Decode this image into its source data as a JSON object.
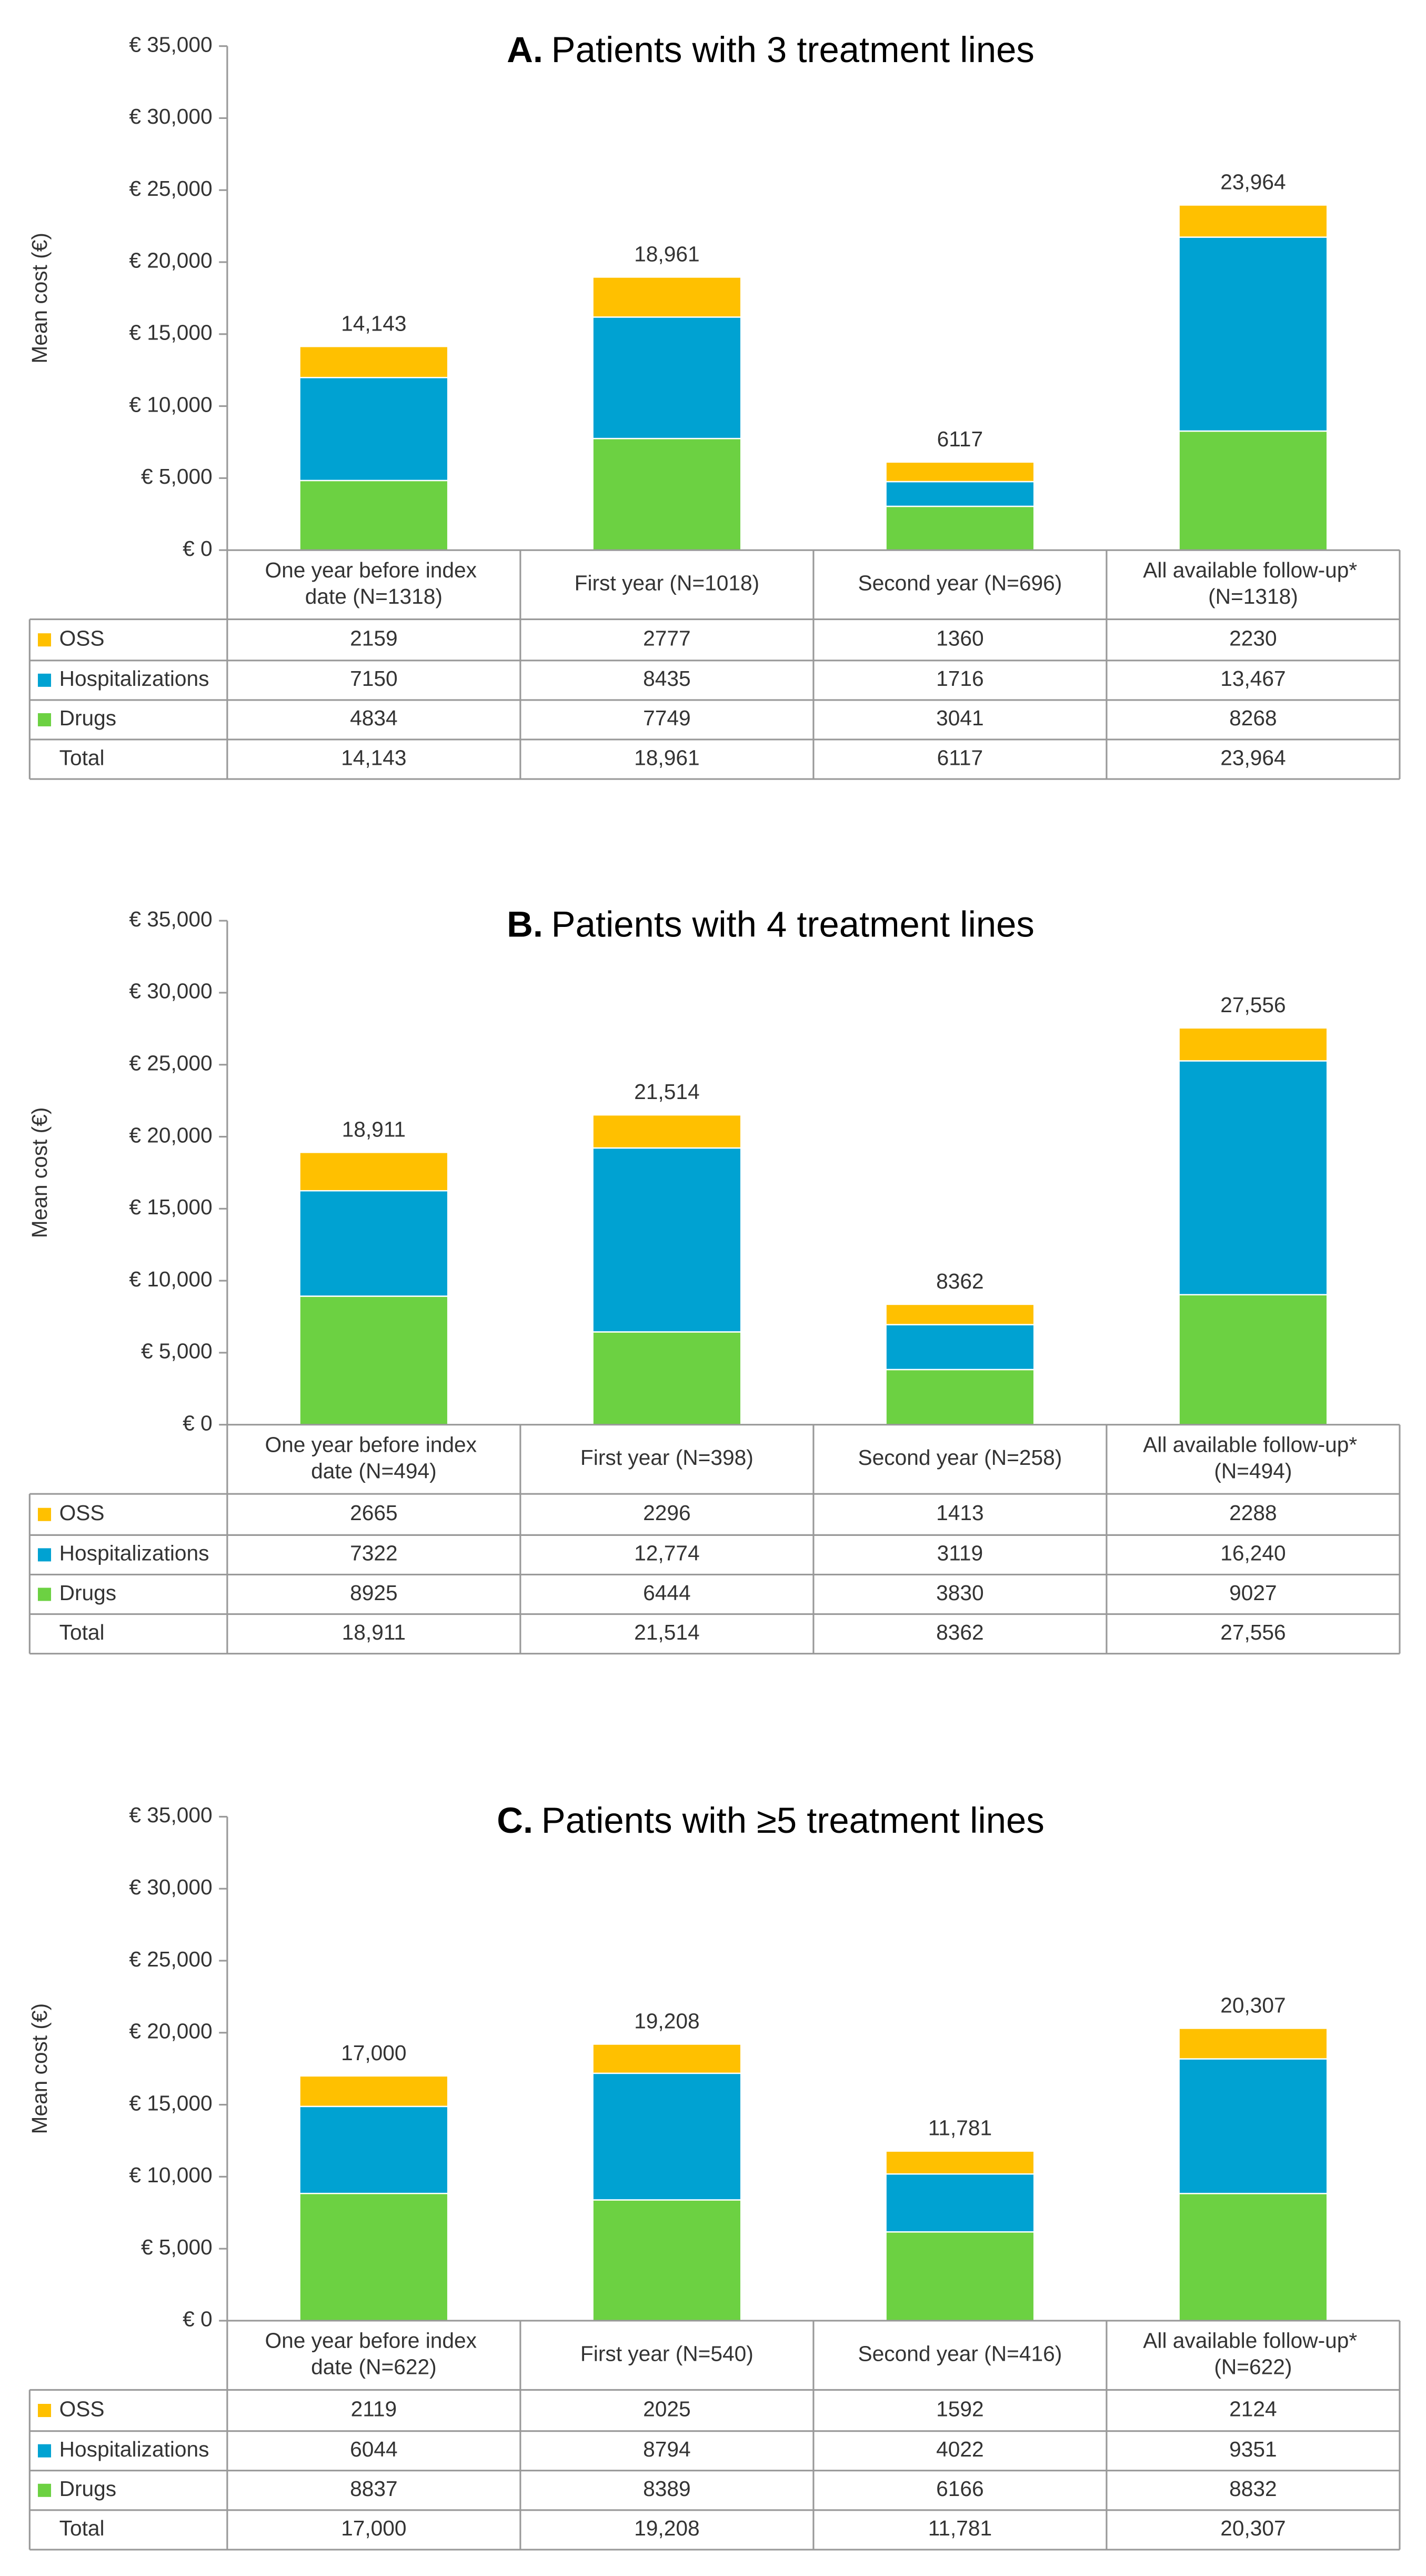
{
  "chart_data": [
    {
      "type": "stacked_bar",
      "panel": "A.",
      "title": "Patients with 3 treatment lines",
      "ylabel": "Mean cost (€)",
      "categories": [
        "One year before index date (N=1318)",
        "First year (N=1018)",
        "Second year (N=696)",
        "All available follow-up* (N=1318)"
      ],
      "series": [
        {
          "name": "OSS",
          "color": "#ffc000",
          "values": [
            2159,
            2777,
            1360,
            2230
          ],
          "value_labels": [
            "2159",
            "2777",
            "1360",
            "2230"
          ]
        },
        {
          "name": "Hospitalizations",
          "color": "#00a2d2",
          "values": [
            7150,
            8435,
            1716,
            13467
          ],
          "value_labels": [
            "7150",
            "8435",
            "1716",
            "13,467"
          ]
        },
        {
          "name": "Drugs",
          "color": "#6cd142",
          "values": [
            4834,
            7749,
            3041,
            8268
          ],
          "value_labels": [
            "4834",
            "7749",
            "3041",
            "8268"
          ]
        }
      ],
      "totals": {
        "name": "Total",
        "values": [
          14143,
          18961,
          6117,
          23964
        ],
        "value_labels": [
          "14,143",
          "18,961",
          "6117",
          "23,964"
        ]
      },
      "ylim": [
        0,
        35000
      ],
      "yticks": [
        {
          "value": 0,
          "label": "€ 0"
        },
        {
          "value": 5000,
          "label": "€ 5,000"
        },
        {
          "value": 10000,
          "label": "€ 10,000"
        },
        {
          "value": 15000,
          "label": "€ 15,000"
        },
        {
          "value": 20000,
          "label": "€ 20,000"
        },
        {
          "value": 25000,
          "label": "€ 25,000"
        },
        {
          "value": 30000,
          "label": "€ 30,000"
        },
        {
          "value": 35000,
          "label": "€ 35,000"
        }
      ]
    },
    {
      "type": "stacked_bar",
      "panel": "B.",
      "title": "Patients with 4 treatment lines",
      "ylabel": "Mean cost (€)",
      "categories": [
        "One year before index date (N=494)",
        "First year (N=398)",
        "Second year (N=258)",
        "All available follow-up* (N=494)"
      ],
      "series": [
        {
          "name": "OSS",
          "color": "#ffc000",
          "values": [
            2665,
            2296,
            1413,
            2288
          ],
          "value_labels": [
            "2665",
            "2296",
            "1413",
            "2288"
          ]
        },
        {
          "name": "Hospitalizations",
          "color": "#00a2d2",
          "values": [
            7322,
            12774,
            3119,
            16240
          ],
          "value_labels": [
            "7322",
            "12,774",
            "3119",
            "16,240"
          ]
        },
        {
          "name": "Drugs",
          "color": "#6cd142",
          "values": [
            8925,
            6444,
            3830,
            9027
          ],
          "value_labels": [
            "8925",
            "6444",
            "3830",
            "9027"
          ]
        }
      ],
      "totals": {
        "name": "Total",
        "values": [
          18911,
          21514,
          8362,
          27556
        ],
        "value_labels": [
          "18,911",
          "21,514",
          "8362",
          "27,556"
        ]
      },
      "ylim": [
        0,
        35000
      ],
      "yticks": [
        {
          "value": 0,
          "label": "€ 0"
        },
        {
          "value": 5000,
          "label": "€ 5,000"
        },
        {
          "value": 10000,
          "label": "€ 10,000"
        },
        {
          "value": 15000,
          "label": "€ 15,000"
        },
        {
          "value": 20000,
          "label": "€ 20,000"
        },
        {
          "value": 25000,
          "label": "€ 25,000"
        },
        {
          "value": 30000,
          "label": "€ 30,000"
        },
        {
          "value": 35000,
          "label": "€ 35,000"
        }
      ]
    },
    {
      "type": "stacked_bar",
      "panel": "C.",
      "title": "Patients with ≥5 treatment lines",
      "ylabel": "Mean cost (€)",
      "categories": [
        "One year before index date (N=622)",
        "First year (N=540)",
        "Second year (N=416)",
        "All available follow-up* (N=622)"
      ],
      "series": [
        {
          "name": "OSS",
          "color": "#ffc000",
          "values": [
            2119,
            2025,
            1592,
            2124
          ],
          "value_labels": [
            "2119",
            "2025",
            "1592",
            "2124"
          ]
        },
        {
          "name": "Hospitalizations",
          "color": "#00a2d2",
          "values": [
            6044,
            8794,
            4022,
            9351
          ],
          "value_labels": [
            "6044",
            "8794",
            "4022",
            "9351"
          ]
        },
        {
          "name": "Drugs",
          "color": "#6cd142",
          "values": [
            8837,
            8389,
            6166,
            8832
          ],
          "value_labels": [
            "8837",
            "8389",
            "6166",
            "8832"
          ]
        }
      ],
      "totals": {
        "name": "Total",
        "values": [
          17000,
          19208,
          11781,
          20307
        ],
        "value_labels": [
          "17,000",
          "19,208",
          "11,781",
          "20,307"
        ]
      },
      "ylim": [
        0,
        35000
      ],
      "yticks": [
        {
          "value": 0,
          "label": "€ 0"
        },
        {
          "value": 5000,
          "label": "€ 5,000"
        },
        {
          "value": 10000,
          "label": "€ 10,000"
        },
        {
          "value": 15000,
          "label": "€ 15,000"
        },
        {
          "value": 20000,
          "label": "€ 20,000"
        },
        {
          "value": 25000,
          "label": "€ 25,000"
        },
        {
          "value": 30000,
          "label": "€ 30,000"
        },
        {
          "value": 35000,
          "label": "€ 35,000"
        }
      ]
    }
  ]
}
